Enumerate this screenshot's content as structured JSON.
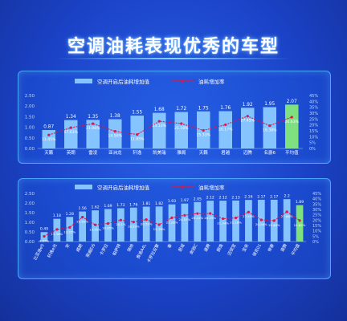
{
  "header": {
    "title": "空调油耗表现优秀的车型"
  },
  "charts": [
    {
      "type": "bar",
      "categories": [
        "天籁",
        "英朗",
        "雷凌",
        "亚洲龙",
        "轩逸",
        "凯美瑞",
        "雅阁",
        "天籁",
        "君越",
        "迈腾",
        "名爵6",
        "平均值"
      ],
      "series": [
        {
          "name": "空调开启后油耗增加值",
          "values": [
            0.87,
            1.34,
            1.35,
            1.38,
            1.55,
            1.68,
            1.72,
            1.75,
            1.76,
            1.92,
            1.95,
            2.07
          ]
        },
        {
          "name": "油耗增加率",
          "values": [
            11.45,
            17.63,
            21.06,
            14.56,
            11.85,
            23.13,
            21.16,
            15.33,
            20.17,
            27.45,
            19.38,
            26.63
          ]
        }
      ],
      "ylim": [
        0,
        2.5
      ],
      "y2lim": [
        0,
        45
      ]
    },
    {
      "type": "bar",
      "categories": [
        "比亚迪e5",
        "轩逸e光",
        "宋",
        "威朗",
        "荣威Ei6",
        "卡罗拉",
        "帕萨特",
        "瑞纳",
        "奥迪A4L",
        "卡罗拉双擎",
        "秦",
        "思域",
        "奔驰C",
        "速腾",
        "朗逸",
        "迈锐宝",
        "宝来",
        "领克01",
        "帝豪",
        "速腾",
        "平均值"
      ],
      "series": [
        {
          "name": "空调开启后油耗增加值",
          "values": [
            0.49,
            1.18,
            1.28,
            1.56,
            1.62,
            1.69,
            1.73,
            1.76,
            1.81,
            1.82,
            1.93,
            1.97,
            2.05,
            2.12,
            2.12,
            2.13,
            2.16,
            2.17,
            2.17,
            2.2,
            1.89
          ]
        },
        {
          "name": "油耗增加率",
          "values": [
            4.87,
            11.36,
            13.25,
            22.89,
            15.55,
            16.85,
            20.1,
            18.29,
            20.52,
            15.76,
            22.26,
            24.57,
            26.22,
            26.25,
            21.34,
            22.16,
            27.59,
            20.26,
            19.48,
            27.86,
            19.65
          ]
        }
      ],
      "ylim": [
        0,
        2.5
      ],
      "y2lim": [
        0,
        45
      ]
    }
  ],
  "chart_data": [
    {
      "type": "bar",
      "categories": [
        "天籁",
        "英朗",
        "雷凌",
        "亚洲龙",
        "轩逸",
        "凯美瑞",
        "雅阁",
        "天籁",
        "君越",
        "迈腾",
        "名爵6",
        "平均值"
      ],
      "series": [
        {
          "name": "空调开启后油耗增加值",
          "values": [
            0.87,
            1.34,
            1.35,
            1.38,
            1.55,
            1.68,
            1.72,
            1.75,
            1.76,
            1.92,
            1.95,
            2.07
          ]
        },
        {
          "name": "油耗增加率",
          "values": [
            11.45,
            17.63,
            21.06,
            14.56,
            11.85,
            23.13,
            21.16,
            15.33,
            20.17,
            27.45,
            19.38,
            26.63
          ]
        }
      ],
      "ylim": [
        0,
        2.5
      ]
    },
    {
      "type": "bar",
      "categories": [
        "比亚迪e5",
        "轩逸e光",
        "宋",
        "威朗",
        "荣威Ei6",
        "卡罗拉",
        "帕萨特",
        "瑞纳",
        "奥迪A4L",
        "卡罗拉双擎",
        "秦",
        "思域",
        "奔驰C",
        "速腾",
        "朗逸",
        "迈锐宝",
        "宝来",
        "领克01",
        "帝豪",
        "速腾",
        "平均值"
      ],
      "series": [
        {
          "name": "空调开启后油耗增加值",
          "values": [
            0.49,
            1.18,
            1.28,
            1.56,
            1.62,
            1.69,
            1.73,
            1.76,
            1.81,
            1.82,
            1.93,
            1.97,
            2.05,
            2.12,
            2.12,
            2.13,
            2.16,
            2.17,
            2.17,
            2.2,
            1.89
          ]
        },
        {
          "name": "油耗增加率",
          "values": [
            4.87,
            11.36,
            13.25,
            22.89,
            15.55,
            16.85,
            20.1,
            18.29,
            20.52,
            15.76,
            22.26,
            24.57,
            26.22,
            26.25,
            21.34,
            22.16,
            27.59,
            20.26,
            19.48,
            27.86,
            19.65
          ]
        }
      ],
      "ylim": [
        0,
        2.5
      ]
    }
  ],
  "colors": {
    "bar": "#86c4ff",
    "avg_bar": "#7fe07f",
    "line": "#d8194a",
    "text": "#ffffff",
    "axis_text": "#bcd8ff"
  },
  "axis": {
    "y_ticks": [
      "0.00",
      "0.50",
      "1.00",
      "1.50",
      "2.00",
      "2.50"
    ],
    "y2_ticks": [
      "0%",
      "5%",
      "10%",
      "15%",
      "20%",
      "25%",
      "30%",
      "35%",
      "40%",
      "45%"
    ]
  }
}
